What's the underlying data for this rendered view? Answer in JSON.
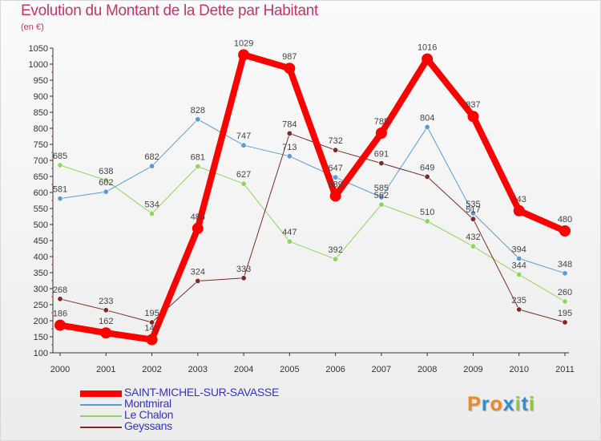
{
  "header": {
    "title": "Evolution du Montant de la Dette par Habitant",
    "unit": "(en €)"
  },
  "brand": {
    "letters": [
      "P",
      "r",
      "o",
      "x",
      "i",
      "t",
      "i"
    ],
    "colors": [
      "#f08a1e",
      "#2e8fd6",
      "#f08a1e",
      "#2e8fd6",
      "#8cc63f",
      "#2e8fd6",
      "#8cc63f"
    ]
  },
  "chart_data": {
    "type": "line",
    "title": "Evolution du Montant de la Dette par Habitant",
    "ylabel": "(en €)",
    "xlabel": "",
    "ylim": [
      100,
      1050
    ],
    "yticks": [
      100,
      150,
      200,
      250,
      300,
      350,
      400,
      450,
      500,
      550,
      600,
      650,
      700,
      750,
      800,
      850,
      900,
      950,
      1000,
      1050
    ],
    "grid": false,
    "legend_position": "bottom-left",
    "x": [
      "2000",
      "2001",
      "2002",
      "2003",
      "2004",
      "2005",
      "2006",
      "2007",
      "2008",
      "2009",
      "2010",
      "2011"
    ],
    "series": [
      {
        "name": "SAINT-MICHEL-SUR-SAVASSE",
        "color": "#ff0000",
        "values": [
          186,
          162,
          141,
          488,
          1029,
          987,
          589,
          785,
          1016,
          837,
          543,
          480
        ]
      },
      {
        "name": "Montmiral",
        "color": "#5b9bd5",
        "values": [
          581,
          602,
          682,
          828,
          747,
          713,
          647,
          585,
          804,
          535,
          394,
          348
        ]
      },
      {
        "name": "Le Chalon",
        "color": "#8cd65b",
        "values": [
          685,
          638,
          534,
          681,
          627,
          447,
          392,
          562,
          510,
          432,
          344,
          260
        ]
      },
      {
        "name": "Geyssans",
        "color": "#7b2a2a",
        "values": [
          268,
          233,
          195,
          324,
          333,
          784,
          732,
          691,
          649,
          517,
          235,
          195
        ]
      }
    ]
  }
}
